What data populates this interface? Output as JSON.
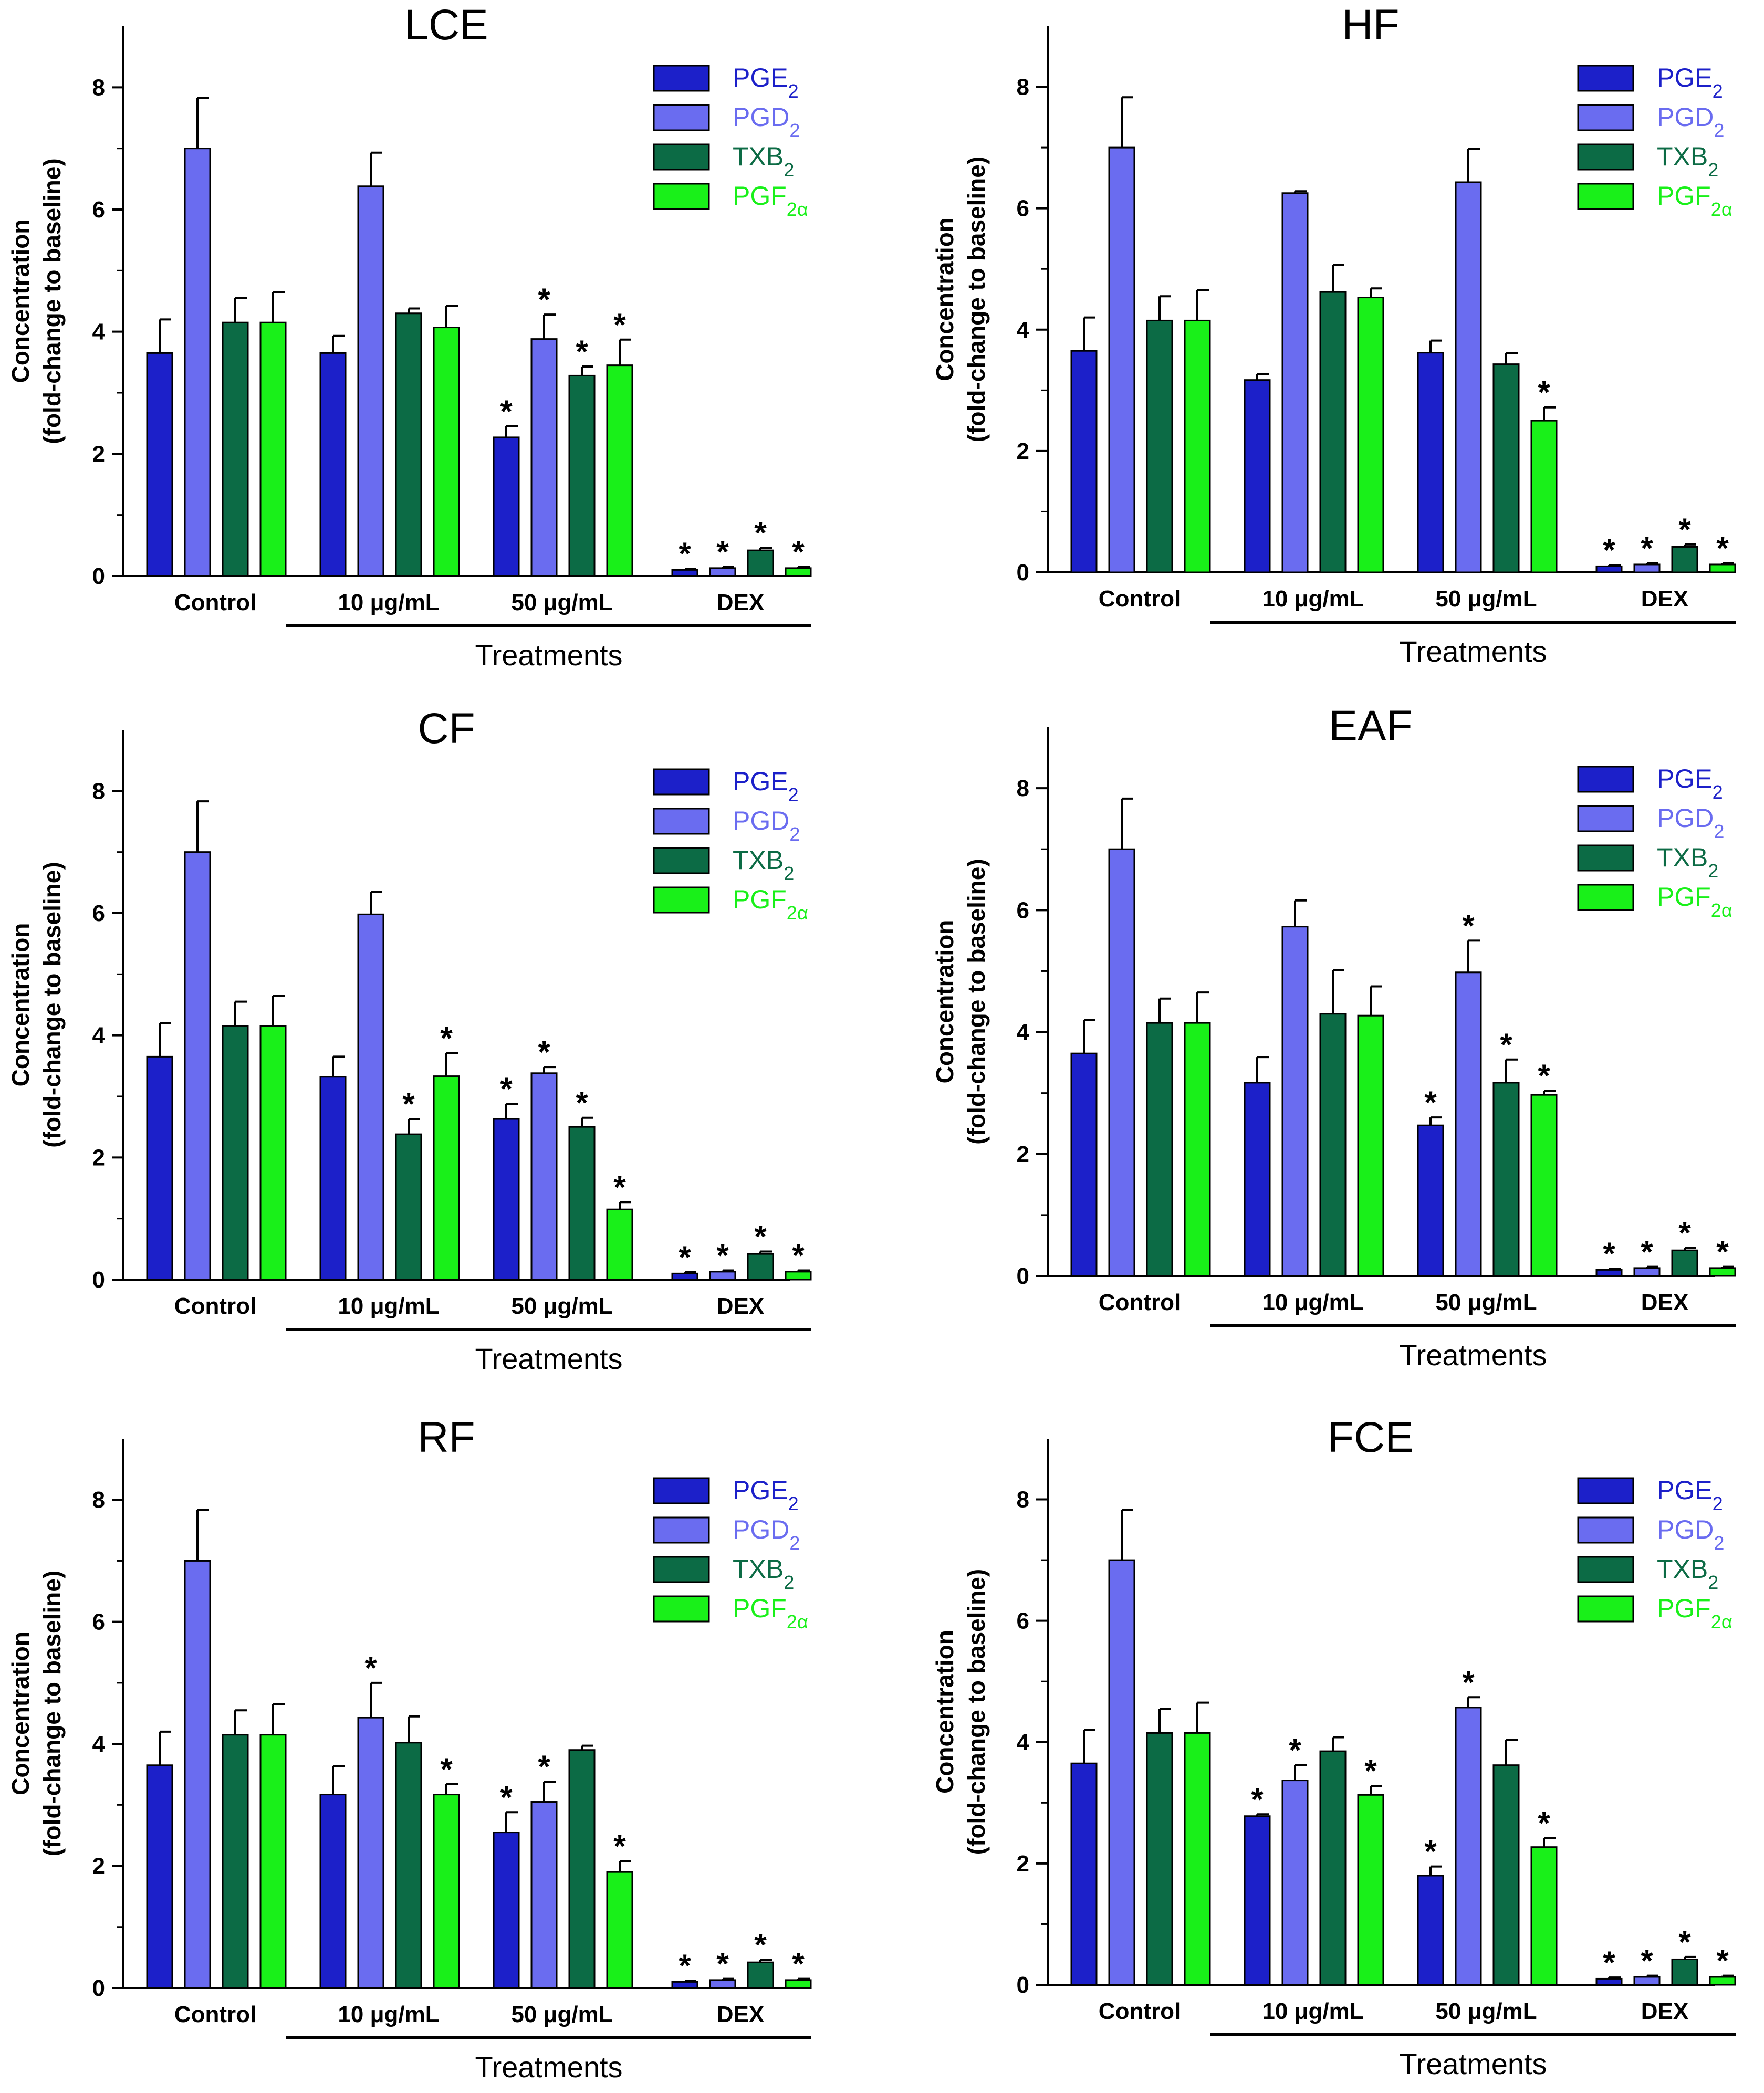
{
  "colors": {
    "PGE2": "#1c20c9",
    "PGD2": "#6a6cf0",
    "TXB2": "#0c6b45",
    "PGF2a": "#19f019"
  },
  "chart_data": [
    {
      "type": "bar",
      "title": "LCE",
      "categories": [
        "Control",
        "10 μg/mL",
        "50 μg/mL",
        "DEX"
      ],
      "xlabel": "Treatments",
      "ylabel_line1": "Concentration",
      "ylabel_line2": "(fold-change to baseline)",
      "ylim": [
        0,
        9
      ],
      "yticks": [
        "0",
        "2",
        "4",
        "6",
        "8"
      ],
      "legend": [
        "PGE",
        "PGD",
        "TXB",
        "PGF"
      ],
      "series": [
        {
          "name": "PGE2",
          "values": [
            3.65,
            3.65,
            2.27,
            0.1
          ],
          "errors": [
            0.55,
            0.28,
            0.18,
            0.02
          ],
          "sig": [
            "",
            "",
            "*",
            "*"
          ]
        },
        {
          "name": "PGD2",
          "values": [
            7.0,
            6.38,
            3.88,
            0.13
          ],
          "errors": [
            0.83,
            0.55,
            0.4,
            0.02
          ],
          "sig": [
            "",
            "",
            "*",
            "*"
          ]
        },
        {
          "name": "TXB2",
          "values": [
            4.15,
            4.3,
            3.28,
            0.42
          ],
          "errors": [
            0.4,
            0.08,
            0.15,
            0.04
          ],
          "sig": [
            "",
            "",
            "*",
            "*"
          ]
        },
        {
          "name": "PGF2a",
          "values": [
            4.15,
            4.07,
            3.45,
            0.13
          ],
          "errors": [
            0.5,
            0.35,
            0.42,
            0.02
          ],
          "sig": [
            "",
            "",
            "*",
            "*"
          ]
        }
      ]
    },
    {
      "type": "bar",
      "title": "HF",
      "categories": [
        "Control",
        "10 μg/mL",
        "50 μg/mL",
        "DEX"
      ],
      "xlabel": "Treatments",
      "ylabel_line1": "Concentration",
      "ylabel_line2": "(fold-change to baseline)",
      "ylim": [
        0,
        9
      ],
      "yticks": [
        "0",
        "2",
        "4",
        "6",
        "8"
      ],
      "legend": [
        "PGE",
        "PGD",
        "TXB",
        "PGF"
      ],
      "series": [
        {
          "name": "PGE2",
          "values": [
            3.65,
            3.17,
            3.62,
            0.1
          ],
          "errors": [
            0.55,
            0.1,
            0.2,
            0.02
          ],
          "sig": [
            "",
            "",
            "",
            "*"
          ]
        },
        {
          "name": "PGD2",
          "values": [
            7.0,
            6.25,
            6.43,
            0.13
          ],
          "errors": [
            0.83,
            0.03,
            0.55,
            0.02
          ],
          "sig": [
            "",
            "",
            "",
            "*"
          ]
        },
        {
          "name": "TXB2",
          "values": [
            4.15,
            4.62,
            3.43,
            0.42
          ],
          "errors": [
            0.4,
            0.45,
            0.18,
            0.04
          ],
          "sig": [
            "",
            "",
            "",
            "*"
          ]
        },
        {
          "name": "PGF2a",
          "values": [
            4.15,
            4.53,
            2.5,
            0.13
          ],
          "errors": [
            0.5,
            0.15,
            0.22,
            0.02
          ],
          "sig": [
            "",
            "",
            "*",
            "*"
          ]
        }
      ]
    },
    {
      "type": "bar",
      "title": "CF",
      "categories": [
        "Control",
        "10 μg/mL",
        "50 μg/mL",
        "DEX"
      ],
      "xlabel": "Treatments",
      "ylabel_line1": "Concentration",
      "ylabel_line2": "(fold-change to baseline)",
      "ylim": [
        0,
        9
      ],
      "yticks": [
        "0",
        "2",
        "4",
        "6",
        "8"
      ],
      "legend": [
        "PGE",
        "PGD",
        "TXB",
        "PGF"
      ],
      "series": [
        {
          "name": "PGE2",
          "values": [
            3.65,
            3.32,
            2.63,
            0.1
          ],
          "errors": [
            0.55,
            0.33,
            0.25,
            0.02
          ],
          "sig": [
            "",
            "",
            "*",
            "*"
          ]
        },
        {
          "name": "PGD2",
          "values": [
            7.0,
            5.98,
            3.38,
            0.13
          ],
          "errors": [
            0.83,
            0.37,
            0.1,
            0.02
          ],
          "sig": [
            "",
            "",
            "*",
            "*"
          ]
        },
        {
          "name": "TXB2",
          "values": [
            4.15,
            2.38,
            2.5,
            0.42
          ],
          "errors": [
            0.4,
            0.25,
            0.15,
            0.04
          ],
          "sig": [
            "",
            "*",
            "*",
            "*"
          ]
        },
        {
          "name": "PGF2a",
          "values": [
            4.15,
            3.33,
            1.15,
            0.13
          ],
          "errors": [
            0.5,
            0.38,
            0.12,
            0.02
          ],
          "sig": [
            "",
            "*",
            "*",
            "*"
          ]
        }
      ]
    },
    {
      "type": "bar",
      "title": "EAF",
      "categories": [
        "Control",
        "10 μg/mL",
        "50 μg/mL",
        "DEX"
      ],
      "xlabel": "Treatments",
      "ylabel_line1": "Concentration",
      "ylabel_line2": "(fold-change to baseline)",
      "ylim": [
        0,
        9
      ],
      "yticks": [
        "0",
        "2",
        "4",
        "6",
        "8"
      ],
      "legend": [
        "PGE",
        "PGD",
        "TXB",
        "PGF"
      ],
      "series": [
        {
          "name": "PGE2",
          "values": [
            3.65,
            3.17,
            2.47,
            0.1
          ],
          "errors": [
            0.55,
            0.42,
            0.13,
            0.02
          ],
          "sig": [
            "",
            "",
            "*",
            "*"
          ]
        },
        {
          "name": "PGD2",
          "values": [
            7.0,
            5.73,
            4.98,
            0.13
          ],
          "errors": [
            0.83,
            0.43,
            0.52,
            0.02
          ],
          "sig": [
            "",
            "",
            "*",
            "*"
          ]
        },
        {
          "name": "TXB2",
          "values": [
            4.15,
            4.3,
            3.17,
            0.42
          ],
          "errors": [
            0.4,
            0.72,
            0.38,
            0.04
          ],
          "sig": [
            "",
            "",
            "*",
            "*"
          ]
        },
        {
          "name": "PGF2a",
          "values": [
            4.15,
            4.27,
            2.97,
            0.13
          ],
          "errors": [
            0.5,
            0.48,
            0.07,
            0.02
          ],
          "sig": [
            "",
            "",
            "*",
            "*"
          ]
        }
      ]
    },
    {
      "type": "bar",
      "title": "RF",
      "categories": [
        "Control",
        "10 μg/mL",
        "50 μg/mL",
        "DEX"
      ],
      "xlabel": "Treatments",
      "ylabel_line1": "Concentration",
      "ylabel_line2": "(fold-change to baseline)",
      "ylim": [
        0,
        9
      ],
      "yticks": [
        "0",
        "2",
        "4",
        "6",
        "8"
      ],
      "legend": [
        "PGE",
        "PGD",
        "TXB",
        "PGF"
      ],
      "series": [
        {
          "name": "PGE2",
          "values": [
            3.65,
            3.17,
            2.55,
            0.1
          ],
          "errors": [
            0.55,
            0.47,
            0.33,
            0.02
          ],
          "sig": [
            "",
            "",
            "*",
            "*"
          ]
        },
        {
          "name": "PGD2",
          "values": [
            7.0,
            4.43,
            3.05,
            0.13
          ],
          "errors": [
            0.83,
            0.57,
            0.33,
            0.02
          ],
          "sig": [
            "",
            "*",
            "*",
            "*"
          ]
        },
        {
          "name": "TXB2",
          "values": [
            4.15,
            4.02,
            3.9,
            0.42
          ],
          "errors": [
            0.4,
            0.43,
            0.07,
            0.04
          ],
          "sig": [
            "",
            "",
            "",
            "*"
          ]
        },
        {
          "name": "PGF2a",
          "values": [
            4.15,
            3.17,
            1.9,
            0.13
          ],
          "errors": [
            0.5,
            0.17,
            0.18,
            0.02
          ],
          "sig": [
            "",
            "*",
            "*",
            "*"
          ]
        }
      ]
    },
    {
      "type": "bar",
      "title": "FCE",
      "categories": [
        "Control",
        "10 μg/mL",
        "50 μg/mL",
        "DEX"
      ],
      "xlabel": "Treatments",
      "ylabel_line1": "Concentration",
      "ylabel_line2": "(fold-change to baseline)",
      "ylim": [
        0,
        9
      ],
      "yticks": [
        "0",
        "2",
        "4",
        "6",
        "8"
      ],
      "legend": [
        "PGE",
        "PGD",
        "TXB",
        "PGF"
      ],
      "series": [
        {
          "name": "PGE2",
          "values": [
            3.65,
            2.78,
            1.8,
            0.1
          ],
          "errors": [
            0.55,
            0.03,
            0.15,
            0.02
          ],
          "sig": [
            "",
            "*",
            "*",
            "*"
          ]
        },
        {
          "name": "PGD2",
          "values": [
            7.0,
            3.37,
            4.57,
            0.13
          ],
          "errors": [
            0.83,
            0.25,
            0.17,
            0.02
          ],
          "sig": [
            "",
            "*",
            "*",
            "*"
          ]
        },
        {
          "name": "TXB2",
          "values": [
            4.15,
            3.85,
            3.62,
            0.42
          ],
          "errors": [
            0.4,
            0.23,
            0.42,
            0.04
          ],
          "sig": [
            "",
            "",
            "",
            "*"
          ]
        },
        {
          "name": "PGF2a",
          "values": [
            4.15,
            3.13,
            2.27,
            0.13
          ],
          "errors": [
            0.5,
            0.15,
            0.15,
            0.02
          ],
          "sig": [
            "",
            "*",
            "*",
            "*"
          ]
        }
      ]
    }
  ]
}
